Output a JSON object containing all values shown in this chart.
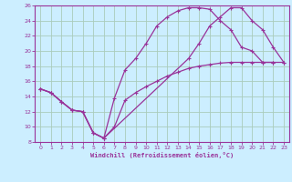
{
  "xlabel": "Windchill (Refroidissement éolien,°C)",
  "bg_color": "#cceeff",
  "grid_color": "#aaccbb",
  "line_color": "#993399",
  "xlim": [
    -0.5,
    23.5
  ],
  "ylim": [
    8,
    26
  ],
  "xticks": [
    0,
    1,
    2,
    3,
    4,
    5,
    6,
    7,
    8,
    9,
    10,
    11,
    12,
    13,
    14,
    15,
    16,
    17,
    18,
    19,
    20,
    21,
    22,
    23
  ],
  "yticks": [
    8,
    10,
    12,
    14,
    16,
    18,
    20,
    22,
    24,
    26
  ],
  "line1_x": [
    0,
    1,
    2,
    3,
    4,
    5,
    6,
    7,
    8,
    9,
    10,
    11,
    12,
    13,
    14,
    15,
    16,
    17,
    18,
    19,
    20,
    21,
    22
  ],
  "line1_y": [
    15.0,
    14.5,
    13.3,
    12.2,
    12.0,
    9.2,
    8.5,
    13.8,
    17.5,
    19.0,
    21.0,
    23.3,
    24.5,
    25.3,
    25.7,
    25.7,
    25.5,
    24.0,
    22.8,
    20.5,
    20.0,
    18.5,
    18.5
  ],
  "line2_x": [
    0,
    1,
    2,
    3,
    4,
    5,
    6,
    14,
    15,
    16,
    17,
    18,
    19,
    20,
    21,
    22,
    23
  ],
  "line2_y": [
    15.0,
    14.5,
    13.3,
    12.2,
    12.0,
    9.2,
    8.5,
    19.0,
    21.0,
    23.3,
    24.5,
    25.7,
    25.7,
    24.0,
    22.8,
    20.5,
    18.5
  ],
  "line3_x": [
    0,
    1,
    2,
    3,
    4,
    5,
    6,
    7,
    8,
    9,
    10,
    11,
    12,
    13,
    14,
    15,
    16,
    17,
    18,
    19,
    20,
    21,
    22,
    23
  ],
  "line3_y": [
    15.0,
    14.5,
    13.3,
    12.2,
    12.0,
    9.2,
    8.5,
    10.0,
    13.5,
    14.5,
    15.3,
    16.0,
    16.7,
    17.2,
    17.7,
    18.0,
    18.2,
    18.4,
    18.5,
    18.5,
    18.5,
    18.5,
    18.5,
    18.5
  ]
}
